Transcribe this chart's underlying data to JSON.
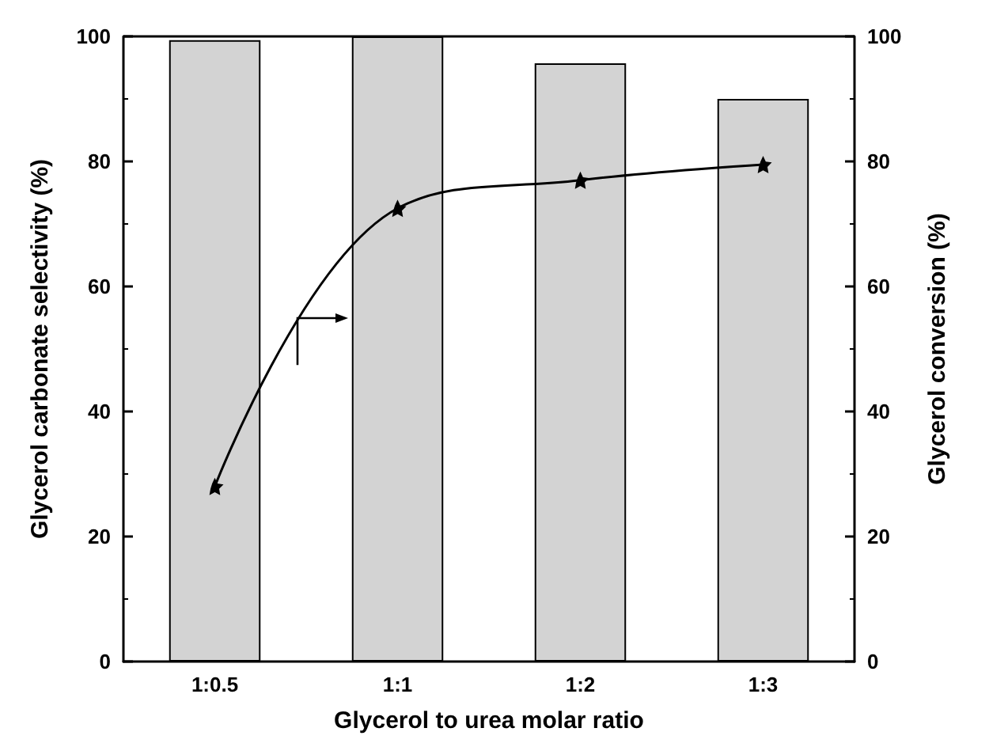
{
  "chart_data": {
    "type": "bar",
    "xlabel": "Glycerol to urea molar ratio",
    "ylabel": "Glycerol carbonate selectivity (%)",
    "y2label": "Glycerol conversion (%)",
    "categories": [
      "1:0.5",
      "1:1",
      "1:2",
      "1:3"
    ],
    "series": [
      {
        "color": "#d3d3d3",
        "values": [
          99.4,
          100,
          95.7,
          90
        ]
      },
      {
        "type": "line",
        "axis": "y2",
        "color": "#000000",
        "values": [
          28,
          72.5,
          77,
          79.5
        ]
      }
    ],
    "ylim": [
      0,
      100
    ],
    "yticks": [
      0,
      20,
      40,
      60,
      80,
      100
    ],
    "y2lim": [
      0,
      100
    ],
    "y2ticks": [
      0,
      20,
      40,
      60,
      80,
      100
    ],
    "grid": false,
    "marker": "star",
    "line_style": "solid"
  }
}
